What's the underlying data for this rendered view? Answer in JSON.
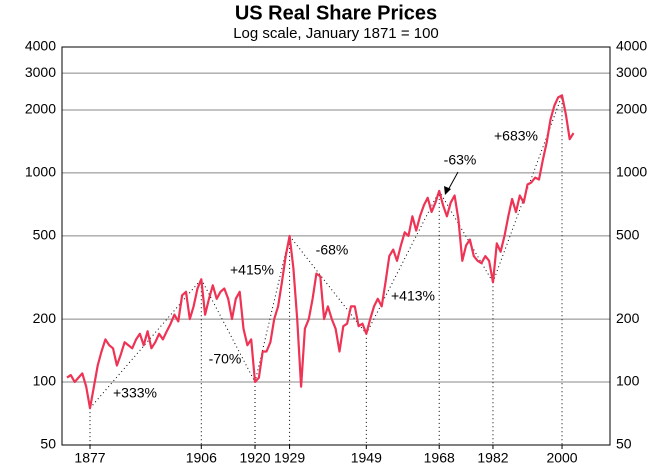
{
  "chart_data": {
    "type": "line",
    "title": "US Real Share Prices",
    "subtitle": "Log scale, January 1871 = 100",
    "x": [
      1871,
      1872,
      1873,
      1874,
      1875,
      1876,
      1877,
      1878,
      1879,
      1880,
      1881,
      1882,
      1883,
      1884,
      1885,
      1886,
      1887,
      1888,
      1889,
      1890,
      1891,
      1892,
      1893,
      1894,
      1895,
      1896,
      1897,
      1898,
      1899,
      1900,
      1901,
      1902,
      1903,
      1904,
      1905,
      1906,
      1907,
      1908,
      1909,
      1910,
      1911,
      1912,
      1913,
      1914,
      1915,
      1916,
      1917,
      1918,
      1919,
      1920,
      1921,
      1922,
      1923,
      1924,
      1925,
      1926,
      1927,
      1928,
      1929,
      1930,
      1931,
      1932,
      1933,
      1934,
      1935,
      1936,
      1937,
      1938,
      1939,
      1940,
      1941,
      1942,
      1943,
      1944,
      1945,
      1946,
      1947,
      1948,
      1949,
      1950,
      1951,
      1952,
      1953,
      1954,
      1955,
      1956,
      1957,
      1958,
      1959,
      1960,
      1961,
      1962,
      1963,
      1964,
      1965,
      1966,
      1967,
      1968,
      1969,
      1970,
      1971,
      1972,
      1973,
      1974,
      1975,
      1976,
      1977,
      1978,
      1979,
      1980,
      1981,
      1982,
      1983,
      1984,
      1985,
      1986,
      1987,
      1988,
      1989,
      1990,
      1991,
      1992,
      1993,
      1994,
      1995,
      1996,
      1997,
      1998,
      1999,
      2000,
      2001,
      2002,
      2003
    ],
    "series": [
      {
        "color": "#ee3355",
        "values": [
          105,
          108,
          100,
          105,
          110,
          95,
          75,
          95,
          120,
          140,
          160,
          150,
          145,
          120,
          135,
          155,
          150,
          145,
          160,
          170,
          150,
          175,
          145,
          155,
          170,
          160,
          175,
          190,
          210,
          195,
          260,
          270,
          200,
          230,
          280,
          310,
          210,
          250,
          290,
          250,
          270,
          280,
          250,
          200,
          250,
          270,
          180,
          150,
          160,
          100,
          105,
          140,
          140,
          155,
          200,
          230,
          300,
          400,
          500,
          350,
          200,
          95,
          180,
          200,
          250,
          330,
          320,
          200,
          230,
          200,
          180,
          140,
          185,
          190,
          230,
          230,
          185,
          190,
          170,
          200,
          230,
          250,
          230,
          300,
          400,
          430,
          380,
          450,
          520,
          500,
          620,
          530,
          620,
          700,
          760,
          650,
          720,
          820,
          700,
          620,
          720,
          780,
          600,
          380,
          450,
          480,
          400,
          380,
          370,
          400,
          380,
          300,
          460,
          420,
          500,
          620,
          750,
          650,
          780,
          720,
          880,
          900,
          950,
          930,
          1150,
          1400,
          1800,
          2100,
          2300,
          2350,
          1900,
          1450,
          1550
        ]
      }
    ],
    "log_scale": true,
    "xlim": [
      1869.7,
      2012.5
    ],
    "xticks": [
      1877,
      1906,
      1920,
      1929,
      1949,
      1968,
      1982,
      2000
    ],
    "ylim": [
      50,
      4000
    ],
    "yticks": [
      50,
      100,
      200,
      500,
      1000,
      2000,
      3000,
      4000
    ],
    "grid": true,
    "annotations": [
      "+333%",
      "-70%",
      "+415%",
      "-68%",
      "+413%",
      "-63%",
      "+683%"
    ]
  }
}
